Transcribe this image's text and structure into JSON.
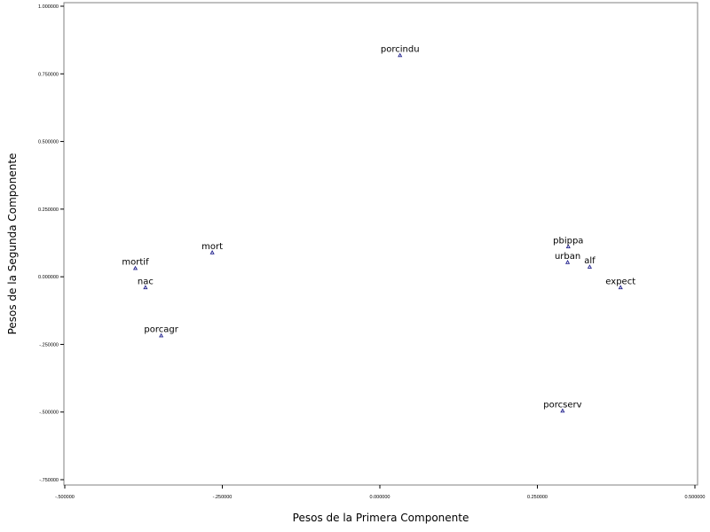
{
  "chart_data": {
    "type": "scatter",
    "xlabel": "Pesos de la Primera Componente",
    "ylabel": "Pesos de la Segunda Componente",
    "xlim": [
      -0.5,
      0.5
    ],
    "ylim": [
      -0.75,
      1.0
    ],
    "x_ticks": [
      -0.5,
      -0.25,
      0.0,
      0.25,
      0.5
    ],
    "x_tick_labels": [
      "-.500000",
      "-.250000",
      "0.000000",
      "0.250000",
      "0.500000"
    ],
    "y_ticks": [
      -0.75,
      -0.5,
      -0.25,
      0.0,
      0.25,
      0.5,
      0.75,
      1.0
    ],
    "y_tick_labels": [
      "-.750000",
      "-.500000",
      "-.250000",
      "0.000000",
      "0.250000",
      "0.500000",
      "0.750000",
      "1.000000"
    ],
    "grid": false,
    "marker_color": "#1e1e8c",
    "points": [
      {
        "label": "porcindu",
        "x": 0.032,
        "y": 0.818
      },
      {
        "label": "mort",
        "x": -0.266,
        "y": 0.089
      },
      {
        "label": "mortif",
        "x": -0.388,
        "y": 0.031
      },
      {
        "label": "nac",
        "x": -0.372,
        "y": -0.04
      },
      {
        "label": "porcagr",
        "x": -0.347,
        "y": -0.218
      },
      {
        "label": "pbippa",
        "x": 0.299,
        "y": 0.111
      },
      {
        "label": "urban",
        "x": 0.298,
        "y": 0.053
      },
      {
        "label": "alf",
        "x": 0.333,
        "y": 0.036
      },
      {
        "label": "expect",
        "x": 0.382,
        "y": -0.04
      },
      {
        "label": "porcserv",
        "x": 0.29,
        "y": -0.496
      }
    ]
  }
}
